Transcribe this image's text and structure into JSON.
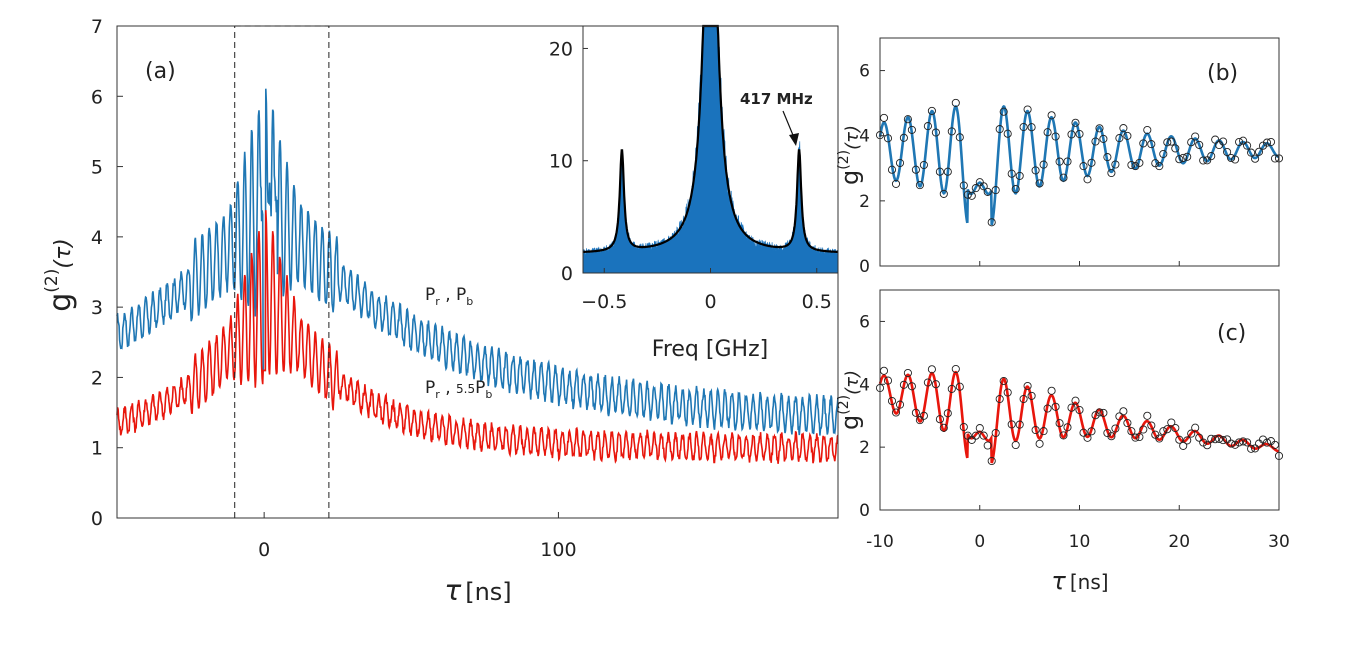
{
  "chart_data": [
    {
      "id": "a",
      "type": "line",
      "panel_label": "(a)",
      "xlabel_sym": "τ",
      "xlabel_unit": "[ns]",
      "ylabel_main": "g",
      "ylabel_sup": "(2)",
      "ylabel_arg": "(τ)",
      "xlim": [
        -50,
        195
      ],
      "ylim": [
        0,
        7
      ],
      "xticks": [
        0,
        100
      ],
      "yticks": [
        0,
        1,
        2,
        3,
        4,
        5,
        6,
        7
      ],
      "zoom_box": {
        "x0": -10,
        "x1": 22,
        "y0": 0,
        "y1": 7
      },
      "series": [
        {
          "name": "Pr, Pb",
          "color": "#1f77b4",
          "label_parts": {
            "p1": "P",
            "s1": "r",
            "sep": " , ",
            "p2": "P",
            "s2": "b"
          },
          "baseline": 1.35,
          "amplitude": 3.15,
          "tau": 56,
          "peak": 4.5,
          "dip": 2.1,
          "osc_amp": 0.35,
          "period": 2.4
        },
        {
          "name": "Pr, 5.5Pb",
          "color": "#e8160c",
          "label_parts": {
            "p1": "P",
            "s1": "r",
            "sep": " , ",
            "coef": "5.5",
            "p2": "P",
            "s2": "b"
          },
          "baseline": 1.0,
          "amplitude": 2.2,
          "tau": 28,
          "peak": 3.25,
          "dip": 2.1,
          "osc_amp": 0.25,
          "period": 2.4
        }
      ]
    },
    {
      "id": "inset",
      "type": "area",
      "xlabel": "Freq [GHz]",
      "xlim": [
        -0.6,
        0.6
      ],
      "ylim": [
        0,
        22
      ],
      "xticks": [
        -0.5,
        0,
        0.5
      ],
      "yticks": [
        0,
        10,
        20
      ],
      "fill_color": "#1a73bd",
      "fit_color": "#000000",
      "peaks": [
        {
          "x": -0.417,
          "y": 11
        },
        {
          "x": 0,
          "y": 22
        },
        {
          "x": 0.417,
          "y": 11
        }
      ],
      "annotation": {
        "text": "417 MHz",
        "x": 0.417,
        "y": 11
      }
    },
    {
      "id": "b",
      "type": "line",
      "panel_label": "(b)",
      "xlim": [
        -10,
        30
      ],
      "ylim": [
        0,
        7
      ],
      "yticks": [
        0,
        2,
        4,
        6
      ],
      "ylabel_main": "g",
      "ylabel_sup": "(2)",
      "ylabel_arg": "(τ)",
      "fit_color": "#1f77b4",
      "marker_color": "#222222",
      "model": {
        "baseline": 3.55,
        "amplitude": 1.7,
        "period": 2.4,
        "decay": 14,
        "dip_depth": 1.5,
        "dip_width": 1.0,
        "slope": -0.0
      }
    },
    {
      "id": "c",
      "type": "line",
      "panel_label": "(c)",
      "xlim": [
        -10,
        30
      ],
      "ylim": [
        0,
        7
      ],
      "xticks": [
        -10,
        0,
        10,
        20,
        30
      ],
      "yticks": [
        0,
        2,
        4,
        6
      ],
      "xlabel_sym": "τ",
      "xlabel_unit": "[ns]",
      "ylabel_main": "g",
      "ylabel_sup": "(2)",
      "ylabel_arg": "(τ)",
      "fit_color": "#e8160c",
      "marker_color": "#222222",
      "model": {
        "baseline": 3.3,
        "amplitude": 1.3,
        "period": 2.4,
        "decay": 11,
        "dip_depth": 1.2,
        "dip_width": 1.0,
        "slope": -0.045
      }
    }
  ]
}
